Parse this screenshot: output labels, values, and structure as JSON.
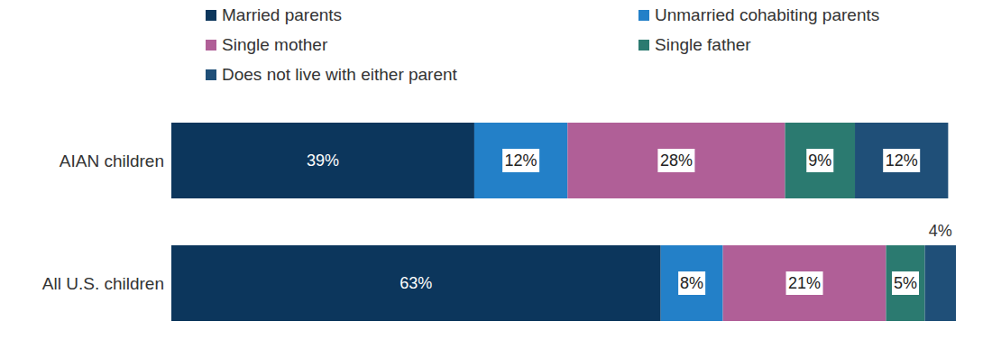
{
  "chart_data": {
    "type": "bar",
    "orientation": "horizontal",
    "stacked": true,
    "data_labels": true,
    "tick_labels": "y",
    "legend": "top",
    "categories": [
      "AIAN children",
      "All U.S. children"
    ],
    "xlim": [
      0,
      101
    ],
    "series": [
      {
        "name": "Married parents",
        "color": "#0c365c",
        "values": [
          39,
          63
        ],
        "value_labels": [
          "39%",
          "63%"
        ]
      },
      {
        "name": "Unmarried cohabiting parents",
        "color": "#2380c8",
        "values": [
          12,
          8
        ],
        "value_labels": [
          "12%",
          "8%"
        ]
      },
      {
        "name": "Single mother",
        "color": "#b05f97",
        "values": [
          28,
          21
        ],
        "value_labels": [
          "28%",
          "21%"
        ]
      },
      {
        "name": "Single father",
        "color": "#2b7a70",
        "values": [
          9,
          5
        ],
        "value_labels": [
          "9%",
          "5%"
        ]
      },
      {
        "name": "Does not live with either parent",
        "color": "#1f4f78",
        "values": [
          12,
          4
        ],
        "value_labels": [
          "12%",
          "4%"
        ]
      }
    ]
  }
}
